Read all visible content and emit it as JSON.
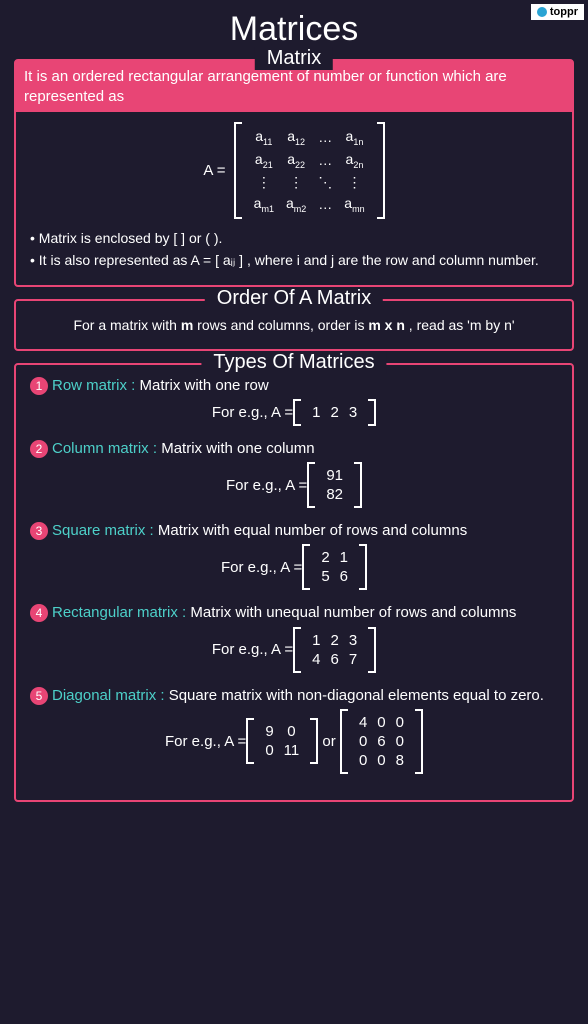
{
  "brand": "toppr",
  "page_title": "Matrices",
  "colors": {
    "background": "#1e1b2e",
    "accent": "#e84575",
    "type_name": "#4dd0c9",
    "text": "#ffffff"
  },
  "section_matrix": {
    "title": "Matrix",
    "intro": "It is an ordered rectangular arrangement of number or function which are represented as",
    "eq_prefix": "A =",
    "bullets": [
      "• Matrix is enclosed by [ ] or ( ).",
      "• It is also represented as A = [ aᵢⱼ ] , where i and j are the row and column number."
    ]
  },
  "section_order": {
    "title": "Order Of A Matrix",
    "text": "For a matrix with m rows and columns, order is m x n , read as 'm by n'"
  },
  "section_types": {
    "title": "Types Of Matrices",
    "items": [
      {
        "num": "1",
        "name": "Row matrix :",
        "desc": " Matrix with one row",
        "eg_label": "For e.g., A =",
        "rows": [
          [
            "1",
            "2",
            "3"
          ]
        ]
      },
      {
        "num": "2",
        "name": "Column matrix :",
        "desc": " Matrix with one column",
        "eg_label": "For e.g., A =",
        "rows": [
          [
            "91"
          ],
          [
            "82"
          ]
        ]
      },
      {
        "num": "3",
        "name": "Square matrix :",
        "desc": " Matrix with equal number of rows and columns",
        "eg_label": "For e.g., A =",
        "rows": [
          [
            "2",
            "1"
          ],
          [
            "5",
            "6"
          ]
        ]
      },
      {
        "num": "4",
        "name": "Rectangular matrix :",
        "desc": " Matrix with unequal number of rows and columns",
        "eg_label": "For e.g., A =",
        "rows": [
          [
            "1",
            "2",
            "3"
          ],
          [
            "4",
            "6",
            "7"
          ]
        ]
      },
      {
        "num": "5",
        "name": "Diagonal matrix :",
        "desc": " Square matrix with non-diagonal elements equal to zero.",
        "eg_label": "For e.g., A =",
        "rows": [
          [
            "9",
            "0"
          ],
          [
            "0",
            "11"
          ]
        ],
        "or": "or",
        "rows2": [
          [
            "4",
            "0",
            "0"
          ],
          [
            "0",
            "6",
            "0"
          ],
          [
            "0",
            "0",
            "8"
          ]
        ]
      }
    ]
  }
}
